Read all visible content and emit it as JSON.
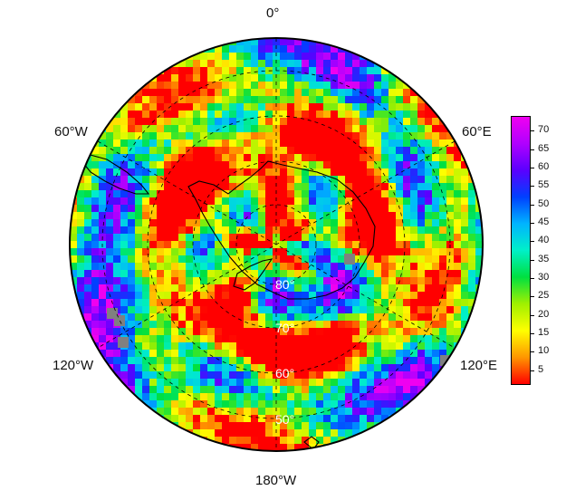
{
  "map": {
    "longitude_labels": {
      "lon_0": "0°",
      "lon_60w": "60°W",
      "lon_60e": "60°E",
      "lon_120w": "120°W",
      "lon_120e": "120°E",
      "lon_180": "180°W"
    },
    "latitude_labels": [
      "80°",
      "70°",
      "60°",
      "50°"
    ],
    "colors": {
      "missing": "#808080",
      "coastline": "#000000",
      "graticule": "#000000"
    }
  },
  "colorbar": {
    "ticks": [
      "70",
      "65",
      "60",
      "55",
      "50",
      "45",
      "40",
      "35",
      "30",
      "25",
      "20",
      "15",
      "10",
      "5"
    ],
    "range": [
      1,
      74
    ],
    "colors": [
      "#ff0000",
      "#ff9600",
      "#ffff00",
      "#a0f000",
      "#00e040",
      "#00f0c8",
      "#00b4ff",
      "#0040ff",
      "#5a00ff",
      "#b000ff",
      "#f000f0"
    ]
  }
}
